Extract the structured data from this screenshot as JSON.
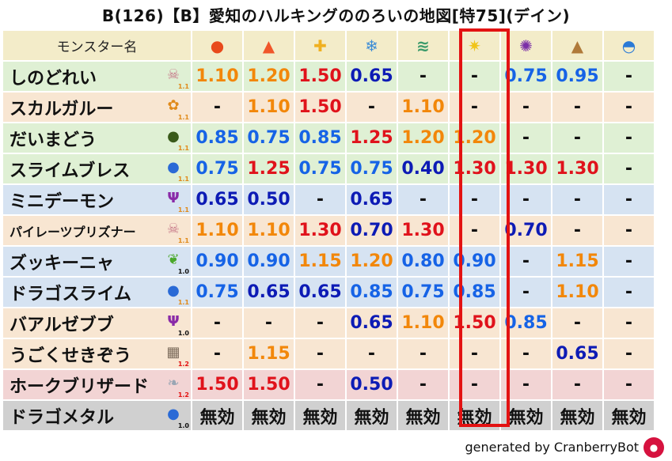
{
  "title": "B(126)【B】愛知のハルキングののろいの地図[特75](デイン)",
  "header_label": "モンスター名",
  "resist_icons": [
    {
      "name": "fire-ball-icon",
      "glyph": "●",
      "color": "#e84a1c",
      "bg": "#f3ecc9"
    },
    {
      "name": "flame-icon",
      "glyph": "▲",
      "color": "#f0562a",
      "bg": "#f3ecc9"
    },
    {
      "name": "explosion-icon",
      "glyph": "✚",
      "color": "#f0b020",
      "bg": "#f3ecc9"
    },
    {
      "name": "ice-icon",
      "glyph": "❄",
      "color": "#3a8bd6",
      "bg": "#f3ecc9"
    },
    {
      "name": "wind-icon",
      "glyph": "≋",
      "color": "#3a9a6a",
      "bg": "#f3ecc9"
    },
    {
      "name": "light-icon",
      "glyph": "✷",
      "color": "#f0c419",
      "bg": "#f3ecc9"
    },
    {
      "name": "dark-icon",
      "glyph": "✺",
      "color": "#7b2fa8",
      "bg": "#f3ecc9"
    },
    {
      "name": "earth-icon",
      "glyph": "▲",
      "color": "#b07a3a",
      "bg": "#f3ecc9"
    },
    {
      "name": "water-icon",
      "glyph": "◓",
      "color": "#2a7ad6",
      "bg": "#f3ecc9"
    }
  ],
  "rows": [
    {
      "name": "しのどれい",
      "small": false,
      "bg": "#dff0d4",
      "icon": "skull-icon",
      "glyph": "☠",
      "icon_color": "#c77a8a",
      "mult": "1.1",
      "mult_color": "#e08a1a",
      "values": [
        {
          "t": "1.10",
          "c": "orange"
        },
        {
          "t": "1.20",
          "c": "orange"
        },
        {
          "t": "1.50",
          "c": "red"
        },
        {
          "t": "0.65",
          "c": "navy"
        },
        {
          "t": "-",
          "c": "dash"
        },
        {
          "t": "-",
          "c": "dash"
        },
        {
          "t": "0.75",
          "c": "blue"
        },
        {
          "t": "0.95",
          "c": "blue"
        },
        {
          "t": "-",
          "c": "dash"
        }
      ]
    },
    {
      "name": "スカルガルー",
      "small": false,
      "bg": "#f8e6d2",
      "icon": "paw-icon",
      "glyph": "✿",
      "icon_color": "#e08a1a",
      "mult": "1.1",
      "mult_color": "#e08a1a",
      "values": [
        {
          "t": "-",
          "c": "dash"
        },
        {
          "t": "1.10",
          "c": "orange"
        },
        {
          "t": "1.50",
          "c": "red"
        },
        {
          "t": "-",
          "c": "dash"
        },
        {
          "t": "1.10",
          "c": "orange"
        },
        {
          "t": "-",
          "c": "dash"
        },
        {
          "t": "-",
          "c": "dash"
        },
        {
          "t": "-",
          "c": "dash"
        },
        {
          "t": "-",
          "c": "dash"
        }
      ]
    },
    {
      "name": "だいまどう",
      "small": false,
      "bg": "#dff0d4",
      "icon": "mage-icon",
      "glyph": "●",
      "icon_color": "#3a5a1a",
      "mult": "1.1",
      "mult_color": "#e08a1a",
      "values": [
        {
          "t": "0.85",
          "c": "blue"
        },
        {
          "t": "0.75",
          "c": "blue"
        },
        {
          "t": "0.85",
          "c": "blue"
        },
        {
          "t": "1.25",
          "c": "red"
        },
        {
          "t": "1.20",
          "c": "orange"
        },
        {
          "t": "1.20",
          "c": "orange"
        },
        {
          "t": "-",
          "c": "dash"
        },
        {
          "t": "-",
          "c": "dash"
        },
        {
          "t": "-",
          "c": "dash"
        }
      ]
    },
    {
      "name": "スライムブレス",
      "small": false,
      "bg": "#dff0d4",
      "icon": "slime-icon",
      "glyph": "●",
      "icon_color": "#2a6ad6",
      "mult": "1.1",
      "mult_color": "#e08a1a",
      "values": [
        {
          "t": "0.75",
          "c": "blue"
        },
        {
          "t": "1.25",
          "c": "red"
        },
        {
          "t": "0.75",
          "c": "blue"
        },
        {
          "t": "0.75",
          "c": "blue"
        },
        {
          "t": "0.40",
          "c": "navy"
        },
        {
          "t": "1.30",
          "c": "red"
        },
        {
          "t": "1.30",
          "c": "red"
        },
        {
          "t": "1.30",
          "c": "red"
        },
        {
          "t": "-",
          "c": "dash"
        }
      ]
    },
    {
      "name": "ミニデーモン",
      "small": false,
      "bg": "#d6e3f2",
      "icon": "demon-icon",
      "glyph": "Ψ",
      "icon_color": "#8a2aa8",
      "mult": "1.1",
      "mult_color": "#e08a1a",
      "values": [
        {
          "t": "0.65",
          "c": "navy"
        },
        {
          "t": "0.50",
          "c": "navy"
        },
        {
          "t": "-",
          "c": "dash"
        },
        {
          "t": "0.65",
          "c": "navy"
        },
        {
          "t": "-",
          "c": "dash"
        },
        {
          "t": "-",
          "c": "dash"
        },
        {
          "t": "-",
          "c": "dash"
        },
        {
          "t": "-",
          "c": "dash"
        },
        {
          "t": "-",
          "c": "dash"
        }
      ]
    },
    {
      "name": "パイレーツプリズナー",
      "small": true,
      "bg": "#f8e6d2",
      "icon": "skull-icon",
      "glyph": "☠",
      "icon_color": "#c77a8a",
      "mult": "1.1",
      "mult_color": "#e08a1a",
      "values": [
        {
          "t": "1.10",
          "c": "orange"
        },
        {
          "t": "1.10",
          "c": "orange"
        },
        {
          "t": "1.30",
          "c": "red"
        },
        {
          "t": "0.70",
          "c": "navy"
        },
        {
          "t": "1.30",
          "c": "red"
        },
        {
          "t": "-",
          "c": "dash"
        },
        {
          "t": "0.70",
          "c": "navy"
        },
        {
          "t": "-",
          "c": "dash"
        },
        {
          "t": "-",
          "c": "dash"
        }
      ]
    },
    {
      "name": "ズッキーニャ",
      "small": false,
      "bg": "#d6e3f2",
      "icon": "leaf-icon",
      "glyph": "❦",
      "icon_color": "#4aa82a",
      "mult": "1.0",
      "mult_color": "#111",
      "values": [
        {
          "t": "0.90",
          "c": "blue"
        },
        {
          "t": "0.90",
          "c": "blue"
        },
        {
          "t": "1.15",
          "c": "orange"
        },
        {
          "t": "1.20",
          "c": "orange"
        },
        {
          "t": "0.80",
          "c": "blue"
        },
        {
          "t": "0.90",
          "c": "blue"
        },
        {
          "t": "-",
          "c": "dash"
        },
        {
          "t": "1.15",
          "c": "orange"
        },
        {
          "t": "-",
          "c": "dash"
        }
      ]
    },
    {
      "name": "ドラゴスライム",
      "small": false,
      "bg": "#d6e3f2",
      "icon": "slime-icon",
      "glyph": "●",
      "icon_color": "#2a6ad6",
      "mult": "1.1",
      "mult_color": "#e08a1a",
      "values": [
        {
          "t": "0.75",
          "c": "blue"
        },
        {
          "t": "0.65",
          "c": "navy"
        },
        {
          "t": "0.65",
          "c": "navy"
        },
        {
          "t": "0.85",
          "c": "blue"
        },
        {
          "t": "0.75",
          "c": "blue"
        },
        {
          "t": "0.85",
          "c": "blue"
        },
        {
          "t": "-",
          "c": "dash"
        },
        {
          "t": "1.10",
          "c": "orange"
        },
        {
          "t": "-",
          "c": "dash"
        }
      ]
    },
    {
      "name": "バアルゼブブ",
      "small": false,
      "bg": "#f8e6d2",
      "icon": "demon-icon",
      "glyph": "Ψ",
      "icon_color": "#8a2aa8",
      "mult": "1.0",
      "mult_color": "#111",
      "values": [
        {
          "t": "-",
          "c": "dash"
        },
        {
          "t": "-",
          "c": "dash"
        },
        {
          "t": "-",
          "c": "dash"
        },
        {
          "t": "0.65",
          "c": "navy"
        },
        {
          "t": "1.10",
          "c": "orange"
        },
        {
          "t": "1.50",
          "c": "red"
        },
        {
          "t": "0.85",
          "c": "blue"
        },
        {
          "t": "-",
          "c": "dash"
        },
        {
          "t": "-",
          "c": "dash"
        }
      ]
    },
    {
      "name": "うごくせきぞう",
      "small": false,
      "bg": "#f8e6d2",
      "icon": "brick-icon",
      "glyph": "▦",
      "icon_color": "#7a6a5a",
      "mult": "1.2",
      "mult_color": "#e31212",
      "values": [
        {
          "t": "-",
          "c": "dash"
        },
        {
          "t": "1.15",
          "c": "orange"
        },
        {
          "t": "-",
          "c": "dash"
        },
        {
          "t": "-",
          "c": "dash"
        },
        {
          "t": "-",
          "c": "dash"
        },
        {
          "t": "-",
          "c": "dash"
        },
        {
          "t": "-",
          "c": "dash"
        },
        {
          "t": "0.65",
          "c": "navy"
        },
        {
          "t": "-",
          "c": "dash"
        }
      ]
    },
    {
      "name": "ホークブリザード",
      "small": false,
      "bg": "#f2d4d4",
      "icon": "wing-icon",
      "glyph": "❧",
      "icon_color": "#9aa6b4",
      "mult": "1.2",
      "mult_color": "#e31212",
      "values": [
        {
          "t": "1.50",
          "c": "red"
        },
        {
          "t": "1.50",
          "c": "red"
        },
        {
          "t": "-",
          "c": "dash"
        },
        {
          "t": "0.50",
          "c": "navy"
        },
        {
          "t": "-",
          "c": "dash"
        },
        {
          "t": "-",
          "c": "dash"
        },
        {
          "t": "-",
          "c": "dash"
        },
        {
          "t": "-",
          "c": "dash"
        },
        {
          "t": "-",
          "c": "dash"
        }
      ]
    },
    {
      "name": "ドラゴメタル",
      "small": false,
      "bg": "#d0d0d0",
      "icon": "slime-icon",
      "glyph": "●",
      "icon_color": "#2a6ad6",
      "mult": "1.0",
      "mult_color": "#111",
      "values": [
        {
          "t": "無効",
          "c": "dark"
        },
        {
          "t": "無効",
          "c": "dark"
        },
        {
          "t": "無効",
          "c": "dark"
        },
        {
          "t": "無効",
          "c": "dark"
        },
        {
          "t": "無効",
          "c": "dark"
        },
        {
          "t": "無効",
          "c": "dark"
        },
        {
          "t": "無効",
          "c": "dark"
        },
        {
          "t": "無効",
          "c": "dark"
        },
        {
          "t": "無効",
          "c": "dark"
        }
      ]
    }
  ],
  "footer": "generated by CranberryBot",
  "bot_icon": "cranberry-bot-icon"
}
